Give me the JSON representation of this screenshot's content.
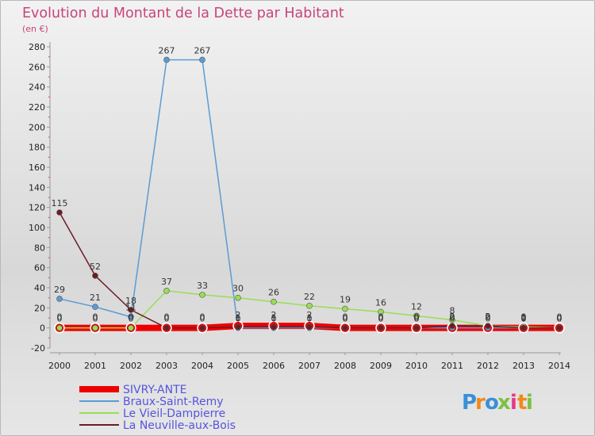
{
  "chart_data": {
    "type": "line",
    "title": "Evolution du Montant de la Dette par Habitant",
    "subtitle": "(en €)",
    "xlabel": "",
    "ylabel": "",
    "x": [
      "2000",
      "2001",
      "2002",
      "2003",
      "2004",
      "2005",
      "2006",
      "2007",
      "2008",
      "2009",
      "2010",
      "2011",
      "2012",
      "2013",
      "2014"
    ],
    "ylim": [
      -20,
      280
    ],
    "yticks": [
      -20,
      0,
      20,
      40,
      60,
      80,
      100,
      120,
      140,
      160,
      180,
      200,
      220,
      240,
      260,
      280
    ],
    "grid": false,
    "legend_position": "bottom-left",
    "series": [
      {
        "name": "SIVRY-ANTE",
        "color": "#ee0000",
        "values": [
          0,
          0,
          0,
          0,
          0,
          2,
          2,
          2,
          0,
          0,
          0,
          0,
          0,
          0,
          0
        ],
        "labels": [
          "0",
          "0",
          "0",
          "0",
          "0",
          "2",
          "2",
          "2",
          "0",
          "0",
          "0",
          "0",
          "0",
          "0",
          "0"
        ]
      },
      {
        "name": "Braux-Saint-Remy",
        "color": "#5b9bd5",
        "values": [
          29,
          21,
          11,
          267,
          267,
          0,
          0,
          0,
          0,
          0,
          0,
          0,
          0,
          0,
          0
        ],
        "labels": [
          "29",
          "21",
          "11",
          "267",
          "267",
          "0",
          "0",
          "0",
          "0",
          "0",
          "0",
          "0",
          "0",
          "0",
          "0"
        ]
      },
      {
        "name": "Le Vieil-Dampierre",
        "color": "#99dd55",
        "values": [
          0,
          0,
          0,
          37,
          33,
          30,
          26,
          22,
          19,
          16,
          12,
          8,
          2,
          1,
          0
        ],
        "labels": [
          "0",
          "0",
          "0",
          "37",
          "33",
          "30",
          "26",
          "22",
          "19",
          "16",
          "12",
          "8",
          "2",
          "1",
          "0"
        ]
      },
      {
        "name": "La Neuville-aux-Bois",
        "color": "#6b1c24",
        "values": [
          115,
          52,
          18,
          0,
          0,
          1,
          1,
          1,
          0,
          0,
          0,
          2,
          2,
          0,
          0
        ],
        "labels": [
          "115",
          "52",
          "18",
          "0",
          "0",
          "1",
          "1",
          "1",
          "0",
          "0",
          "0",
          "2",
          "2",
          "0",
          "0"
        ]
      }
    ]
  },
  "legend": {
    "items": [
      {
        "label": "SIVRY-ANTE",
        "color": "#ee0000"
      },
      {
        "label": "Braux-Saint-Remy",
        "color": "#5b9bd5"
      },
      {
        "label": "Le Vieil-Dampierre",
        "color": "#99dd55"
      },
      {
        "label": "La Neuville-aux-Bois",
        "color": "#6b1c24"
      }
    ],
    "text_color": "#5555dd"
  },
  "logo": {
    "letters": [
      "P",
      "r",
      "o",
      "x",
      "i",
      "t",
      "i"
    ],
    "colors": [
      "#3a8fd8",
      "#f08a1a",
      "#3a8fd8",
      "#7bc142",
      "#e8388a",
      "#f08a1a",
      "#7bc142"
    ]
  }
}
